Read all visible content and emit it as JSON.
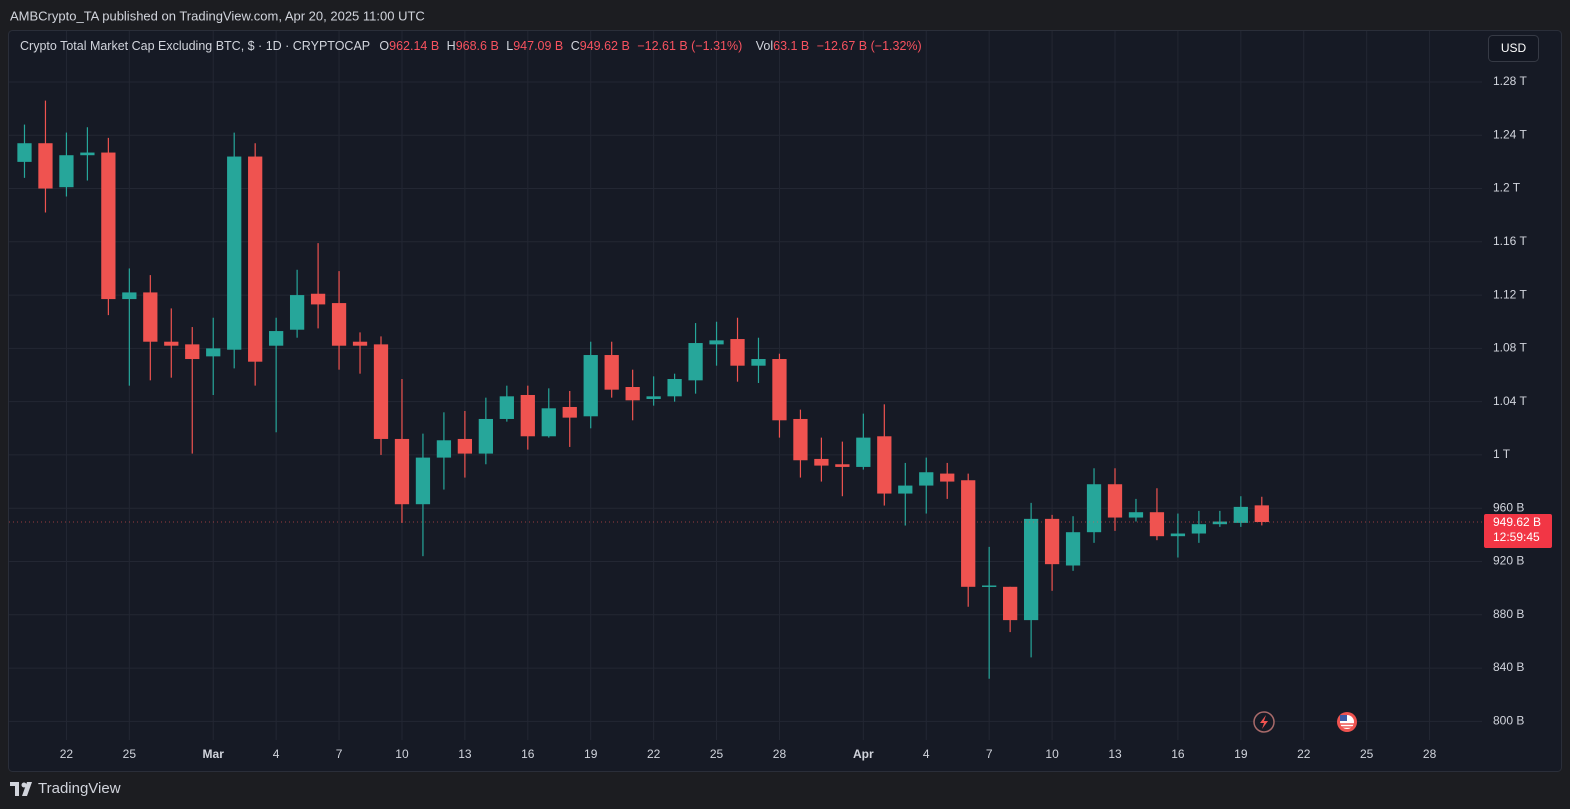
{
  "header": {
    "byline": "AMBCrypto_TA published on TradingView.com, Apr 20, 2025 11:00 UTC"
  },
  "chart_data": {
    "type": "candlestick",
    "title": "Crypto Total Market Cap Excluding BTC, $ · 1D · CRYPTOCAP",
    "ohlc_legend": [
      {
        "key": "O",
        "value": "962.14 B"
      },
      {
        "key": "H",
        "value": "968.6 B"
      },
      {
        "key": "L",
        "value": "947.09 B"
      },
      {
        "key": "C",
        "value": "949.62 B"
      }
    ],
    "change": "−12.61 B (−1.31%)",
    "volume": {
      "key": "Vol",
      "value": "63.1 B",
      "change": "−12.67 B (−1.32%)"
    },
    "currency": "USD",
    "categories": [
      null,
      null,
      "22",
      null,
      null,
      "25",
      null,
      null,
      null,
      "Mar",
      null,
      null,
      "4",
      null,
      null,
      "7",
      null,
      null,
      "10",
      null,
      null,
      "13",
      null,
      null,
      "16",
      null,
      null,
      "19",
      null,
      null,
      "22",
      null,
      null,
      "25",
      null,
      null,
      "28",
      null,
      null,
      null,
      "Apr",
      null,
      null,
      "4",
      null,
      null,
      "7",
      null,
      null,
      "10",
      null,
      null,
      "13",
      null,
      null,
      "16",
      null,
      null,
      "19",
      null,
      null,
      "22",
      null,
      null,
      "25",
      null,
      null,
      "28",
      null,
      null
    ],
    "open": [
      1220,
      1234,
      1201,
      1225,
      1227,
      1117,
      1122,
      1085,
      1083,
      1074,
      1079,
      1224,
      1082,
      1094,
      1121,
      1114,
      1085,
      1083,
      1012,
      963,
      998,
      1012,
      1001,
      1027,
      1045,
      1014,
      1036,
      1029,
      1075,
      1051,
      1042,
      1044,
      1056,
      1083,
      1087,
      1067,
      1072,
      1027,
      997,
      993,
      991,
      1014,
      971,
      977,
      986,
      981,
      901,
      901,
      876,
      952,
      917,
      942,
      978,
      953,
      957,
      939,
      941,
      948,
      949,
      962.14,
      null,
      null,
      null,
      null,
      null,
      null,
      null,
      null,
      null,
      null
    ],
    "high": [
      1248,
      1266,
      1242,
      1246,
      1238,
      1140,
      1135,
      1110,
      1096,
      1103,
      1242,
      1234,
      1103,
      1139,
      1159,
      1138,
      1092,
      1089,
      1057,
      1016,
      1032,
      1033,
      1043,
      1052,
      1052,
      1050,
      1048,
      1085,
      1085,
      1064,
      1059,
      1061,
      1099,
      1100,
      1103,
      1088,
      1076,
      1034,
      1013,
      1010,
      1031,
      1038,
      994,
      998,
      994,
      986,
      931,
      901,
      964,
      955,
      954,
      990,
      990,
      967,
      975,
      956,
      958,
      958,
      969,
      968.6,
      null,
      null,
      null,
      null,
      null,
      null,
      null,
      null,
      null,
      null
    ],
    "low": [
      1208,
      1182,
      1194,
      1206,
      1105,
      1052,
      1056,
      1058,
      1001,
      1045,
      1065,
      1052,
      1017,
      1088,
      1095,
      1064,
      1061,
      1000,
      949,
      924,
      974,
      983,
      993,
      1025,
      1004,
      1013,
      1006,
      1020,
      1043,
      1026,
      1037,
      1040,
      1046,
      1067,
      1055,
      1054,
      1013,
      983,
      980,
      969,
      989,
      962,
      947,
      956,
      967,
      886,
      832,
      867,
      848,
      898,
      913,
      934,
      943,
      950,
      936,
      923,
      934,
      946,
      946,
      947.09,
      null,
      null,
      null,
      null,
      null,
      null,
      null,
      null,
      null,
      null
    ],
    "close": [
      1234,
      1200,
      1225,
      1227,
      1117,
      1122,
      1085,
      1082,
      1072,
      1080,
      1224,
      1070,
      1093,
      1120,
      1113,
      1082,
      1082,
      1012,
      963,
      998,
      1011,
      1001,
      1027,
      1044,
      1014,
      1035,
      1028,
      1075,
      1049,
      1041,
      1044,
      1057,
      1084,
      1086,
      1067,
      1072,
      1026,
      996,
      992,
      991,
      1013,
      971,
      977,
      987,
      980,
      901,
      902,
      876,
      952,
      918,
      942,
      978,
      953,
      957,
      939,
      941,
      948,
      950,
      961,
      949.62,
      null,
      null,
      null,
      null,
      null,
      null,
      null,
      null,
      null,
      null
    ],
    "up_color": "#26a69a",
    "down_color": "#ef5350",
    "last_price": {
      "value": 949.62,
      "label": "949.62 B",
      "countdown": "12:59:45"
    },
    "ylim": [
      786,
      1319
    ],
    "yticks": [
      {
        "value": 800,
        "label": "800 B"
      },
      {
        "value": 840,
        "label": "840 B"
      },
      {
        "value": 880,
        "label": "880 B"
      },
      {
        "value": 920,
        "label": "920 B"
      },
      {
        "value": 960,
        "label": "960 B"
      },
      {
        "value": 1000,
        "label": "1 T"
      },
      {
        "value": 1040,
        "label": "1.04 T"
      },
      {
        "value": 1080,
        "label": "1.08 T"
      },
      {
        "value": 1120,
        "label": "1.12 T"
      },
      {
        "value": 1160,
        "label": "1.16 T"
      },
      {
        "value": 1200,
        "label": "1.2 T"
      },
      {
        "value": 1240,
        "label": "1.24 T"
      },
      {
        "value": 1280,
        "label": "1.28 T"
      }
    ],
    "grid": true
  },
  "footer": {
    "brand": "TradingView"
  }
}
